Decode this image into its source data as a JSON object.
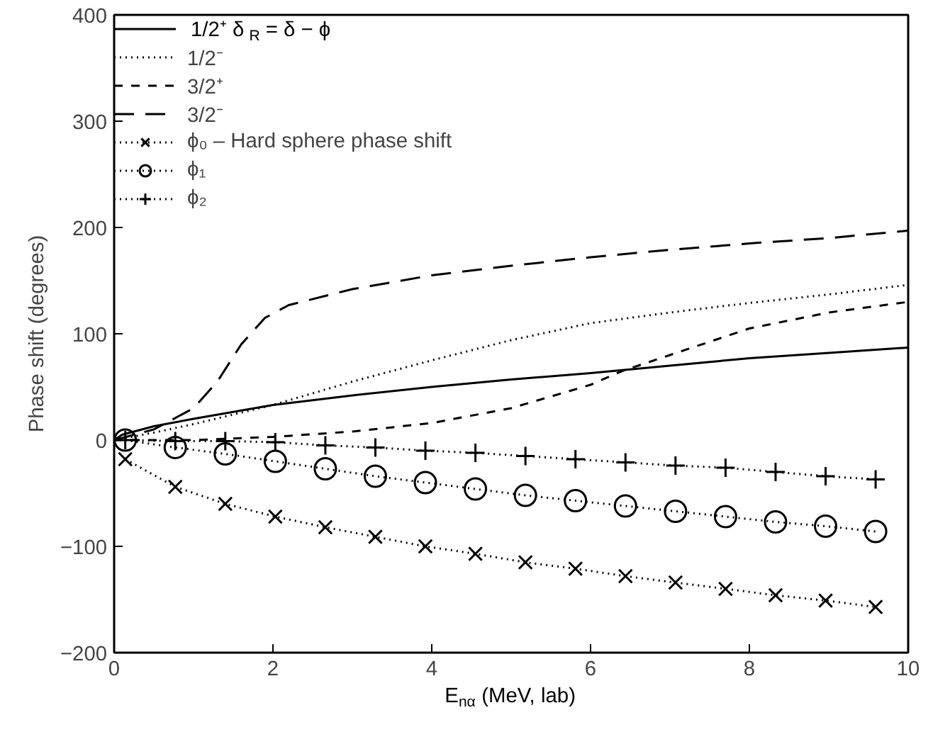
{
  "chart_data": {
    "type": "line",
    "xlabel": "E$_{nα}$ (MeV, lab)",
    "ylabel": "Phase shift (degrees)",
    "xlim": [
      0,
      10
    ],
    "ylim": [
      -200,
      400
    ],
    "xticks": [
      0,
      2,
      4,
      6,
      8,
      10
    ],
    "yticks": [
      {
        "value": -200,
        "label": "−200"
      },
      {
        "value": -100,
        "label": "−100"
      },
      0,
      100,
      200,
      300,
      400
    ],
    "legend": "top left",
    "grid": false,
    "series": [
      {
        "name": "1/2⁺  δ$_{R}$ = δ − ϕ",
        "color": "#000000",
        "line_style": "solid",
        "marker": "none",
        "x": [
          0,
          0.1,
          0.5,
          1,
          2,
          3,
          4,
          5,
          6,
          7,
          8,
          9,
          10
        ],
        "values": [
          0,
          5,
          13,
          20,
          33,
          42,
          50,
          57,
          63,
          70,
          77,
          82,
          87
        ]
      },
      {
        "name": "1/2⁻",
        "color": "#000000",
        "line_style": "dotted",
        "marker": "none",
        "x": [
          0,
          0.5,
          1,
          2,
          3,
          4,
          5,
          6,
          7,
          8,
          9,
          10
        ],
        "values": [
          0,
          7,
          15,
          33,
          55,
          75,
          94,
          110,
          120,
          129,
          137,
          146
        ]
      },
      {
        "name": "3/2⁺",
        "color": "#000000",
        "line_style": "dashed",
        "marker": "none",
        "x": [
          0,
          1,
          2,
          3,
          4,
          5,
          6,
          6.4,
          7,
          8,
          9,
          10
        ],
        "values": [
          0,
          0,
          3,
          8,
          16,
          30,
          52,
          65,
          80,
          105,
          120,
          130
        ]
      },
      {
        "name": "3/2⁻",
        "color": "#000000",
        "line_style": "longdash",
        "marker": "none",
        "x": [
          0,
          0.5,
          1,
          1.3,
          1.6,
          1.9,
          2.2,
          3,
          4,
          5,
          6,
          7,
          8,
          9,
          10
        ],
        "values": [
          0,
          10,
          30,
          55,
          90,
          115,
          127,
          142,
          155,
          164,
          172,
          179,
          185,
          190,
          197
        ]
      },
      {
        "name": "ϕ₀ – Hard sphere phase shift",
        "color": "#000000",
        "line_style": "dotted",
        "marker": "x",
        "x": [
          0.14,
          0.77,
          1.4,
          2.03,
          2.66,
          3.29,
          3.92,
          4.55,
          5.18,
          5.81,
          6.44,
          7.07,
          7.7,
          8.33,
          8.96,
          9.59
        ],
        "values": [
          -18,
          -44,
          -60,
          -72,
          -82,
          -91,
          -100,
          -107,
          -115,
          -121,
          -128,
          -134,
          -140,
          -146,
          -151,
          -157
        ]
      },
      {
        "name": "ϕ₁",
        "color": "#000000",
        "line_style": "dotted",
        "marker": "circle",
        "x": [
          0.14,
          0.77,
          1.4,
          2.03,
          2.66,
          3.29,
          3.92,
          4.55,
          5.18,
          5.81,
          6.44,
          7.07,
          7.7,
          8.33,
          8.96,
          9.59
        ],
        "values": [
          0,
          -7,
          -13,
          -20,
          -27,
          -34,
          -40,
          -46,
          -52,
          -57,
          -62,
          -67,
          -72,
          -77,
          -81,
          -86
        ]
      },
      {
        "name": "ϕ₂",
        "color": "#000000",
        "line_style": "dotted",
        "marker": "cross",
        "x": [
          0.14,
          0.77,
          1.4,
          2.03,
          2.66,
          3.29,
          3.92,
          4.55,
          5.18,
          5.81,
          6.44,
          7.07,
          7.7,
          8.33,
          8.96,
          9.59
        ],
        "values": [
          0,
          -1,
          -1,
          -2,
          -5,
          -7,
          -10,
          -12,
          -15,
          -18,
          -21,
          -24,
          -26,
          -30,
          -34,
          -37
        ]
      }
    ]
  }
}
